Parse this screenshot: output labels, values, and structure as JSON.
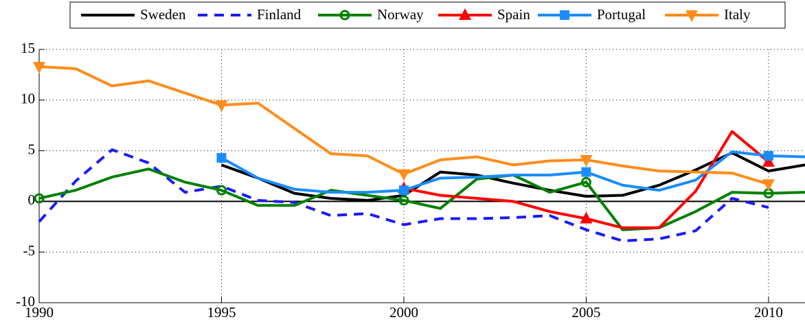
{
  "chart_data": {
    "type": "line",
    "x": [
      1990,
      1991,
      1992,
      1993,
      1994,
      1995,
      1996,
      1997,
      1998,
      1999,
      2000,
      2001,
      2002,
      2003,
      2004,
      2005,
      2006,
      2007,
      2008,
      2009,
      2010,
      2011
    ],
    "xlim": [
      1990,
      2011
    ],
    "xticks": [
      1990,
      1995,
      2000,
      2005,
      2010
    ],
    "ylim": [
      -10,
      15
    ],
    "yticks": [
      -10,
      -5,
      0,
      5,
      10,
      15
    ],
    "grid": true,
    "zero_line": true,
    "legend": "top",
    "series": [
      {
        "name": "Sweden",
        "color": "#000000",
        "line_style": "solid",
        "marker": "none",
        "values": [
          null,
          null,
          null,
          null,
          null,
          3.6,
          2.3,
          0.8,
          0.3,
          0.1,
          0.6,
          2.9,
          2.6,
          1.8,
          1.1,
          0.5,
          0.6,
          1.6,
          3.1,
          4.8,
          3.0,
          3.6
        ]
      },
      {
        "name": "Finland",
        "color": "#1a1aff",
        "line_style": "dashed",
        "marker": "none",
        "values": [
          -2.0,
          2.0,
          5.1,
          3.8,
          0.9,
          1.5,
          0.1,
          -0.1,
          -1.4,
          -1.2,
          -2.3,
          -1.7,
          -1.7,
          -1.6,
          -1.4,
          -2.8,
          -3.9,
          -3.7,
          -2.9,
          0.3,
          -0.6,
          null
        ]
      },
      {
        "name": "Norway",
        "color": "#008000",
        "line_style": "solid",
        "marker": "circle",
        "values": [
          0.3,
          1.1,
          2.4,
          3.2,
          1.9,
          1.1,
          -0.4,
          -0.4,
          1.1,
          0.6,
          0.1,
          -0.7,
          2.2,
          2.6,
          0.9,
          1.9,
          -2.8,
          -2.6,
          -1.0,
          0.9,
          0.8,
          0.9
        ]
      },
      {
        "name": "Spain",
        "color": "#ff0000",
        "line_style": "solid",
        "marker": "triangle-up",
        "values": [
          null,
          null,
          null,
          null,
          null,
          null,
          null,
          null,
          null,
          null,
          1.3,
          0.6,
          0.3,
          0.0,
          -1.0,
          -1.7,
          -2.6,
          -2.6,
          1.0,
          6.9,
          3.9,
          null
        ]
      },
      {
        "name": "Portugal",
        "color": "#1a8cff",
        "line_style": "solid",
        "marker": "square",
        "values": [
          null,
          null,
          null,
          null,
          null,
          4.3,
          2.3,
          1.2,
          0.9,
          0.9,
          1.1,
          2.3,
          2.4,
          2.6,
          2.6,
          2.9,
          1.6,
          1.1,
          2.1,
          4.9,
          4.5,
          4.4
        ]
      },
      {
        "name": "Italy",
        "color": "#ff8c1a",
        "line_style": "solid",
        "marker": "triangle-down",
        "values": [
          13.3,
          13.1,
          11.4,
          11.9,
          10.7,
          9.5,
          9.7,
          7.2,
          4.7,
          4.5,
          2.7,
          4.1,
          4.4,
          3.6,
          4.0,
          4.1,
          3.5,
          3.0,
          2.9,
          2.8,
          1.7,
          null
        ]
      }
    ]
  }
}
